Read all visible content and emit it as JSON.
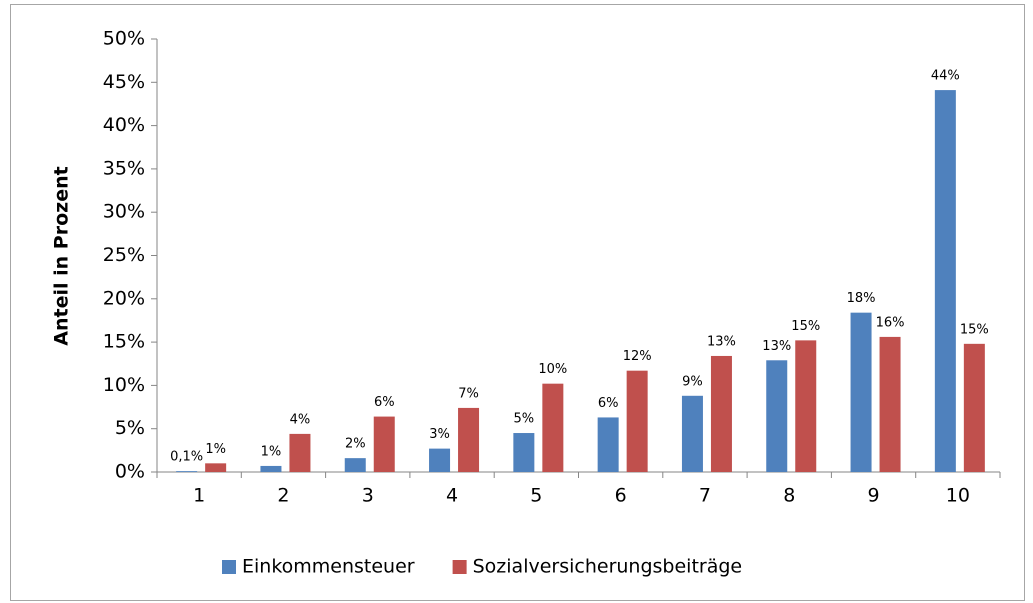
{
  "chart_data": {
    "type": "bar",
    "y_axis_label": "Anteil in Prozent",
    "categories": [
      "1",
      "2",
      "3",
      "4",
      "5",
      "6",
      "7",
      "8",
      "9",
      "10"
    ],
    "series": [
      {
        "name": "Einkommensteuer",
        "color": "#4f81bd",
        "values": [
          0.1,
          0.7,
          1.6,
          2.7,
          4.5,
          6.3,
          8.8,
          12.9,
          18.4,
          44.1
        ],
        "value_labels": [
          "0,1%",
          "1%",
          "2%",
          "3%",
          "5%",
          "6%",
          "9%",
          "13%",
          "18%",
          "44%"
        ]
      },
      {
        "name": "Sozialversicherungsbeiträge",
        "color": "#c0504d",
        "values": [
          1.0,
          4.4,
          6.4,
          7.4,
          10.2,
          11.7,
          13.4,
          15.2,
          15.6,
          14.8
        ],
        "value_labels": [
          "1%",
          "4%",
          "6%",
          "7%",
          "10%",
          "12%",
          "13%",
          "15%",
          "16%",
          "15%"
        ]
      }
    ],
    "ylim": [
      0,
      50
    ],
    "yticks": [
      {
        "value": 0,
        "label": "0%"
      },
      {
        "value": 5,
        "label": "5%"
      },
      {
        "value": 10,
        "label": "10%"
      },
      {
        "value": 15,
        "label": "15%"
      },
      {
        "value": 20,
        "label": "20%"
      },
      {
        "value": 25,
        "label": "25%"
      },
      {
        "value": 30,
        "label": "30%"
      },
      {
        "value": 35,
        "label": "35%"
      },
      {
        "value": 40,
        "label": "40%"
      },
      {
        "value": 45,
        "label": "45%"
      },
      {
        "value": 50,
        "label": "50%"
      }
    ],
    "legend": "bottom"
  }
}
